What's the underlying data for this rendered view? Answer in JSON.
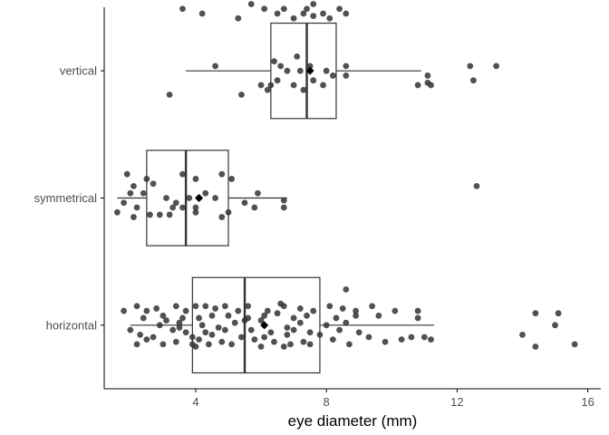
{
  "chart_data": {
    "type": "boxplot",
    "orientation": "horizontal",
    "title": "",
    "xlabel": "eye diameter (mm)",
    "ylabel": "",
    "xlim": [
      1.2,
      16.4
    ],
    "xticks": [
      4,
      8,
      12,
      16
    ],
    "grid": false,
    "legend": "none",
    "colors": {
      "point": "#333333",
      "box": "#333333",
      "mean": "#000000"
    },
    "categories": [
      "horizontal",
      "symmetrical",
      "vertical"
    ],
    "groups": [
      {
        "category": "vertical",
        "box": {
          "whisker_low": 3.7,
          "q1": 6.3,
          "median": 7.4,
          "q3": 8.3,
          "whisker_high": 10.9,
          "mean": 7.5
        },
        "points": [
          [
            3.6,
            1.3
          ],
          [
            4.2,
            1.2
          ],
          [
            5.3,
            1.1
          ],
          [
            5.7,
            1.4
          ],
          [
            6.1,
            1.3
          ],
          [
            6.5,
            1.2
          ],
          [
            6.7,
            1.3
          ],
          [
            7.0,
            1.1
          ],
          [
            7.3,
            1.2
          ],
          [
            7.4,
            1.3
          ],
          [
            7.6,
            1.4
          ],
          [
            7.9,
            1.2
          ],
          [
            8.1,
            1.1
          ],
          [
            8.4,
            1.3
          ],
          [
            8.6,
            1.2
          ],
          [
            4.6,
            0.1
          ],
          [
            6.4,
            0.2
          ],
          [
            6.6,
            0.1
          ],
          [
            6.8,
            0.0
          ],
          [
            7.2,
            0.0
          ],
          [
            7.5,
            0.1
          ],
          [
            8.0,
            0.0
          ],
          [
            8.2,
            -0.1
          ],
          [
            8.6,
            0.1
          ],
          [
            6.5,
            -0.2
          ],
          [
            7.0,
            -0.3
          ],
          [
            7.6,
            -0.2
          ],
          [
            7.9,
            -0.3
          ],
          [
            8.6,
            -0.1
          ],
          [
            6.3,
            -0.3
          ],
          [
            6.2,
            -0.4
          ],
          [
            7.3,
            -0.4
          ],
          [
            6.0,
            -0.3
          ],
          [
            7.1,
            0.3
          ],
          [
            11.1,
            -0.1
          ],
          [
            11.2,
            -0.3
          ],
          [
            12.4,
            0.1
          ],
          [
            13.2,
            0.1
          ],
          [
            12.5,
            -0.2
          ],
          [
            10.8,
            -0.3
          ],
          [
            11.1,
            -0.25
          ],
          [
            3.2,
            -0.5
          ],
          [
            5.4,
            -0.5
          ],
          [
            7.6,
            1.15
          ]
        ]
      },
      {
        "category": "symmetrical",
        "box": {
          "whisker_low": 1.6,
          "q1": 2.5,
          "median": 3.7,
          "q3": 5.0,
          "whisker_high": 6.8,
          "mean": 4.1
        },
        "points": [
          [
            1.9,
            0.5
          ],
          [
            2.5,
            0.4
          ],
          [
            2.7,
            0.3
          ],
          [
            3.6,
            0.5
          ],
          [
            4.0,
            0.4
          ],
          [
            4.8,
            0.5
          ],
          [
            5.1,
            0.4
          ],
          [
            2.0,
            0.1
          ],
          [
            2.4,
            0.1
          ],
          [
            3.1,
            0.0
          ],
          [
            3.8,
            0.0
          ],
          [
            4.1,
            0.0
          ],
          [
            4.3,
            0.1
          ],
          [
            4.6,
            0.0
          ],
          [
            5.5,
            -0.1
          ],
          [
            5.9,
            0.1
          ],
          [
            6.7,
            -0.05
          ],
          [
            6.7,
            -0.2
          ],
          [
            1.8,
            -0.1
          ],
          [
            2.2,
            -0.2
          ],
          [
            3.3,
            -0.2
          ],
          [
            3.6,
            -0.2
          ],
          [
            4.0,
            -0.2
          ],
          [
            4.0,
            -0.3
          ],
          [
            5.0,
            -0.3
          ],
          [
            1.6,
            -0.3
          ],
          [
            2.1,
            -0.4
          ],
          [
            2.6,
            -0.35
          ],
          [
            2.9,
            -0.35
          ],
          [
            3.2,
            -0.35
          ],
          [
            4.8,
            -0.4
          ],
          [
            5.8,
            -0.2
          ],
          [
            2.1,
            0.25
          ],
          [
            3.4,
            -0.1
          ],
          [
            12.6,
            0.25
          ]
        ]
      },
      {
        "category": "horizontal",
        "box": {
          "whisker_low": 2.0,
          "q1": 3.9,
          "median": 5.5,
          "q3": 7.8,
          "whisker_high": 11.3,
          "mean": 6.1
        },
        "points": [
          [
            1.8,
            0.3
          ],
          [
            2.2,
            0.4
          ],
          [
            2.5,
            0.3
          ],
          [
            2.8,
            0.35
          ],
          [
            3.0,
            0.2
          ],
          [
            3.4,
            0.4
          ],
          [
            3.7,
            0.3
          ],
          [
            4.0,
            0.4
          ],
          [
            4.3,
            0.4
          ],
          [
            4.6,
            0.35
          ],
          [
            4.9,
            0.4
          ],
          [
            5.3,
            0.3
          ],
          [
            5.6,
            0.4
          ],
          [
            6.2,
            0.3
          ],
          [
            6.7,
            0.4
          ],
          [
            7.2,
            0.35
          ],
          [
            7.6,
            0.3
          ],
          [
            8.1,
            0.4
          ],
          [
            8.5,
            0.35
          ],
          [
            8.9,
            0.3
          ],
          [
            9.4,
            0.4
          ],
          [
            10.1,
            0.3
          ],
          [
            10.8,
            0.3
          ],
          [
            2.4,
            0.15
          ],
          [
            3.1,
            0.1
          ],
          [
            3.5,
            0.05
          ],
          [
            4.1,
            0.15
          ],
          [
            4.5,
            0.2
          ],
          [
            5.0,
            0.2
          ],
          [
            5.6,
            0.15
          ],
          [
            6.1,
            0.2
          ],
          [
            6.5,
            0.25
          ],
          [
            7.0,
            0.15
          ],
          [
            7.4,
            0.2
          ],
          [
            8.3,
            0.15
          ],
          [
            8.9,
            0.2
          ],
          [
            9.6,
            0.2
          ],
          [
            10.8,
            0.15
          ],
          [
            2.9,
            0.0
          ],
          [
            3.5,
            -0.05
          ],
          [
            4.2,
            0.0
          ],
          [
            4.7,
            -0.05
          ],
          [
            5.2,
            0.05
          ],
          [
            6.0,
            0.1
          ],
          [
            6.8,
            -0.05
          ],
          [
            7.2,
            0.05
          ],
          [
            8.0,
            0.0
          ],
          [
            8.6,
            0.05
          ],
          [
            3.3,
            -0.1
          ],
          [
            3.7,
            -0.15
          ],
          [
            4.3,
            -0.15
          ],
          [
            4.9,
            -0.1
          ],
          [
            5.7,
            -0.1
          ],
          [
            6.3,
            -0.15
          ],
          [
            7.0,
            -0.1
          ],
          [
            7.5,
            -0.15
          ],
          [
            8.4,
            -0.1
          ],
          [
            9.0,
            -0.15
          ],
          [
            2.3,
            -0.2
          ],
          [
            2.7,
            -0.25
          ],
          [
            3.9,
            -0.25
          ],
          [
            4.5,
            -0.2
          ],
          [
            5.4,
            -0.25
          ],
          [
            6.1,
            -0.25
          ],
          [
            6.8,
            -0.2
          ],
          [
            7.8,
            -0.2
          ],
          [
            9.3,
            -0.25
          ],
          [
            2.5,
            -0.3
          ],
          [
            3.4,
            -0.35
          ],
          [
            4.1,
            -0.3
          ],
          [
            4.8,
            -0.35
          ],
          [
            5.8,
            -0.3
          ],
          [
            6.4,
            -0.35
          ],
          [
            7.3,
            -0.35
          ],
          [
            8.2,
            -0.3
          ],
          [
            2.2,
            -0.4
          ],
          [
            3.0,
            -0.4
          ],
          [
            3.9,
            -0.4
          ],
          [
            4.4,
            -0.4
          ],
          [
            5.1,
            -0.4
          ],
          [
            6.0,
            -0.45
          ],
          [
            6.7,
            -0.45
          ],
          [
            6.9,
            -0.4
          ],
          [
            7.5,
            -0.4
          ],
          [
            8.7,
            -0.4
          ],
          [
            9.8,
            -0.35
          ],
          [
            10.3,
            -0.3
          ],
          [
            10.6,
            -0.25
          ],
          [
            11.2,
            -0.3
          ],
          [
            11.0,
            -0.25
          ],
          [
            14.0,
            -0.2
          ],
          [
            14.4,
            -0.45
          ],
          [
            14.4,
            0.25
          ],
          [
            15.0,
            0.0
          ],
          [
            15.1,
            0.25
          ],
          [
            15.6,
            -0.4
          ],
          [
            8.6,
            0.75
          ],
          [
            2.0,
            -0.1
          ],
          [
            3.6,
            0.15
          ],
          [
            4.0,
            -0.45
          ],
          [
            5.5,
            0.1
          ],
          [
            6.6,
            0.45
          ]
        ]
      }
    ]
  }
}
